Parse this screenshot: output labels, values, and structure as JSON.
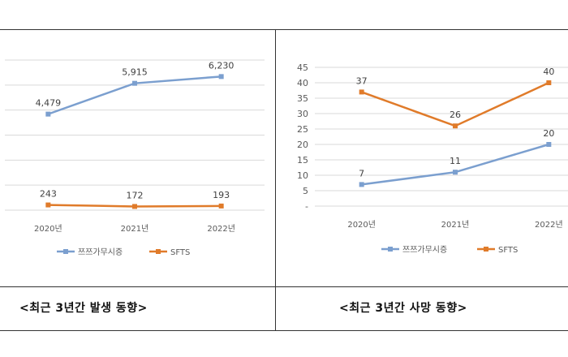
{
  "charts": {
    "left": {
      "caption": "<최근 3년간 발생 동향>"
    },
    "right": {
      "caption": "<최근 3년간 사망 동향>"
    }
  },
  "colors": {
    "sfts_tsutsugamushi": "#7B9FCF",
    "sfts": "#E07B2A",
    "grid": "#d9d9d9",
    "text": "#595959"
  },
  "chart_data": [
    {
      "type": "line",
      "categories": [
        "2020년",
        "2021년",
        "2022년"
      ],
      "series": [
        {
          "name": "쯔쯔가무시증",
          "values": [
            4479,
            5915,
            6230
          ],
          "labels": [
            "4,479",
            "5,915",
            "6,230"
          ]
        },
        {
          "name": "SFTS",
          "values": [
            243,
            172,
            193
          ],
          "labels": [
            "243",
            "172",
            "193"
          ]
        }
      ],
      "ylim": [
        0,
        7000
      ],
      "grid": true,
      "legend": "bottom"
    },
    {
      "type": "line",
      "categories": [
        "2020년",
        "2021년",
        "2022년"
      ],
      "series": [
        {
          "name": "쯔쯔가무시증",
          "values": [
            7,
            11,
            20
          ],
          "labels": [
            "7",
            "11",
            "20"
          ]
        },
        {
          "name": "SFTS",
          "values": [
            37,
            26,
            40
          ],
          "labels": [
            "37",
            "26",
            "40"
          ]
        }
      ],
      "yticks": [
        "-",
        "5",
        "10",
        "15",
        "20",
        "25",
        "30",
        "35",
        "40",
        "45"
      ],
      "ylim": [
        0,
        45
      ],
      "grid": true,
      "legend": "bottom"
    }
  ]
}
